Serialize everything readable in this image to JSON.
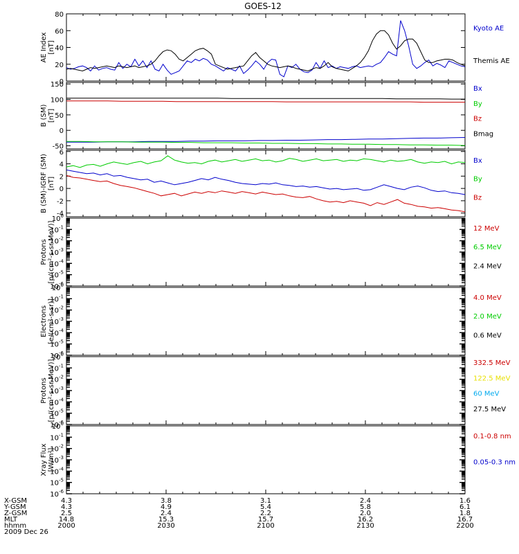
{
  "title": "GOES-12",
  "colors": {
    "black": "#000000",
    "blue": "#0000cc",
    "green": "#00cc00",
    "red": "#cc0000",
    "yellow": "#e8e000",
    "cyan": "#00aaee"
  },
  "chart_data": [
    {
      "id": "ae",
      "type": "line",
      "ylabel": [
        "AE Index",
        "[nT]"
      ],
      "ylim": [
        0,
        80
      ],
      "yticks": [
        0,
        20,
        40,
        60,
        80
      ],
      "scale": "linear",
      "series": [
        {
          "name": "Kyoto AE",
          "color": "#0000cc",
          "values": [
            16,
            14,
            15,
            17,
            18,
            16,
            12,
            18,
            13,
            15,
            16,
            14,
            13,
            22,
            15,
            20,
            17,
            26,
            18,
            24,
            16,
            24,
            14,
            12,
            20,
            13,
            8,
            10,
            12,
            18,
            24,
            22,
            26,
            24,
            27,
            25,
            20,
            18,
            15,
            12,
            16,
            14,
            12,
            18,
            9,
            13,
            18,
            24,
            20,
            14,
            22,
            26,
            25,
            8,
            5,
            18,
            16,
            20,
            14,
            11,
            10,
            13,
            22,
            15,
            24,
            16,
            18,
            15,
            17,
            16,
            15,
            17,
            18,
            16,
            17,
            18,
            17,
            20,
            22,
            28,
            35,
            32,
            30,
            72,
            60,
            42,
            20,
            15,
            18,
            22,
            25,
            18,
            21,
            19,
            16,
            24,
            22,
            20,
            18,
            17
          ]
        },
        {
          "name": "Themis AE",
          "color": "#000000",
          "values": [
            14,
            15,
            14,
            13,
            12,
            14,
            16,
            15,
            16,
            17,
            18,
            17,
            16,
            18,
            17,
            16,
            17,
            18,
            16,
            17,
            18,
            20,
            24,
            30,
            35,
            37,
            36,
            32,
            26,
            24,
            28,
            32,
            36,
            38,
            39,
            36,
            32,
            20,
            18,
            16,
            14,
            15,
            16,
            17,
            18,
            24,
            30,
            34,
            28,
            24,
            20,
            18,
            17,
            16,
            17,
            18,
            17,
            15,
            14,
            13,
            12,
            14,
            16,
            15,
            18,
            22,
            17,
            15,
            14,
            13,
            12,
            15,
            18,
            22,
            28,
            36,
            48,
            56,
            60,
            60,
            55,
            45,
            38,
            42,
            48,
            50,
            50,
            45,
            35,
            25,
            22,
            22,
            24,
            25,
            26,
            26,
            25,
            22,
            20,
            18
          ]
        }
      ]
    },
    {
      "id": "bfield",
      "type": "line",
      "ylabel": [
        "B (SM)",
        "[nT]"
      ],
      "ylim": [
        -60,
        155
      ],
      "yticks": [
        -50,
        0,
        50,
        100,
        150
      ],
      "scale": "linear",
      "series": [
        {
          "name": "Bx",
          "color": "#0000cc",
          "values": [
            -38,
            -38,
            -38,
            -37,
            -37,
            -37,
            -36,
            -36,
            -36,
            -35,
            -35,
            -34,
            -34,
            -34,
            -33,
            -33,
            -32,
            -32,
            -31,
            -30,
            -30,
            -29,
            -28,
            -28,
            -27,
            -26,
            -25,
            -25,
            -24,
            -23
          ]
        },
        {
          "name": "By",
          "color": "#00cc00",
          "values": [
            -36,
            -36,
            -37,
            -37,
            -37,
            -38,
            -38,
            -38,
            -39,
            -39,
            -40,
            -40,
            -40,
            -41,
            -41,
            -42,
            -42,
            -43,
            -43,
            -44,
            -44,
            -45,
            -45,
            -46,
            -46,
            -47,
            -47,
            -48,
            -48,
            -49
          ]
        },
        {
          "name": "Bz",
          "color": "#cc0000",
          "values": [
            95,
            95,
            95,
            95,
            94,
            94,
            94,
            94,
            93,
            93,
            93,
            93,
            93,
            93,
            93,
            93,
            92,
            92,
            92,
            92,
            92,
            92,
            92,
            92,
            92,
            92,
            91,
            91,
            91,
            91
          ]
        },
        {
          "name": "Bmag",
          "color": "#000000",
          "values": [
            104,
            104,
            104,
            104,
            104,
            104,
            104,
            104,
            104,
            104,
            104,
            104,
            103,
            103,
            103,
            103,
            103,
            103,
            103,
            103,
            103,
            103,
            103,
            103,
            102,
            102,
            102,
            102,
            101,
            101
          ]
        }
      ]
    },
    {
      "id": "bdiff",
      "type": "line",
      "ylabel": [
        "B (SM)-IGRF (SM)",
        "[nT]"
      ],
      "ylim": [
        -4.6,
        6.2
      ],
      "yticks": [
        -4,
        -2,
        0,
        2,
        4,
        6
      ],
      "scale": "linear",
      "series": [
        {
          "name": "Bx",
          "color": "#0000cc",
          "values": [
            3,
            2.8,
            2.6,
            2.4,
            2.5,
            2.2,
            2.4,
            2.0,
            2.1,
            1.8,
            1.6,
            1.4,
            1.5,
            1.0,
            1.2,
            0.9,
            0.6,
            0.8,
            1.0,
            1.3,
            1.6,
            1.4,
            1.8,
            1.5,
            1.3,
            1.0,
            0.8,
            0.7,
            0.6,
            0.8,
            0.7,
            0.9,
            0.6,
            0.5,
            0.3,
            0.4,
            0.2,
            0.3,
            0.1,
            -0.1,
            0.0,
            -0.2,
            -0.1,
            0.0,
            -0.3,
            -0.2,
            0.2,
            0.6,
            0.3,
            0.0,
            -0.2,
            0.2,
            0.4,
            0.1,
            -0.3,
            -0.5,
            -0.4,
            -0.7,
            -0.8,
            -1.0
          ]
        },
        {
          "name": "By",
          "color": "#00cc00",
          "values": [
            3.5,
            3.7,
            3.4,
            3.8,
            3.9,
            3.6,
            4.0,
            4.3,
            4.1,
            3.9,
            4.2,
            4.4,
            4.0,
            4.3,
            4.5,
            5.3,
            4.6,
            4.3,
            4.1,
            4.2,
            4.0,
            4.4,
            4.6,
            4.3,
            4.5,
            4.7,
            4.4,
            4.6,
            4.8,
            4.5,
            4.6,
            4.3,
            4.5,
            4.9,
            4.7,
            4.4,
            4.6,
            4.8,
            4.5,
            4.6,
            4.7,
            4.4,
            4.6,
            4.5,
            4.8,
            4.7,
            4.5,
            4.3,
            4.6,
            4.4,
            4.5,
            4.7,
            4.3,
            4.1,
            4.3,
            4.2,
            4.4,
            4.0,
            4.3,
            4.2
          ]
        },
        {
          "name": "Bz",
          "color": "#cc0000",
          "values": [
            2.1,
            1.8,
            1.7,
            1.5,
            1.3,
            1.1,
            1.2,
            0.8,
            0.5,
            0.3,
            0.1,
            -0.2,
            -0.5,
            -0.8,
            -1.2,
            -1.0,
            -0.8,
            -1.2,
            -0.9,
            -0.6,
            -0.8,
            -0.5,
            -0.7,
            -0.4,
            -0.6,
            -0.8,
            -0.5,
            -0.7,
            -0.9,
            -0.6,
            -0.8,
            -1.0,
            -0.9,
            -1.2,
            -1.4,
            -1.5,
            -1.3,
            -1.7,
            -2.0,
            -2.2,
            -2.1,
            -2.3,
            -2.0,
            -2.2,
            -2.4,
            -2.8,
            -2.3,
            -2.6,
            -2.2,
            -1.8,
            -2.4,
            -2.6,
            -2.9,
            -3.0,
            -3.2,
            -3.1,
            -3.3,
            -3.5,
            -3.6,
            -3.8
          ]
        }
      ]
    },
    {
      "id": "protons1",
      "type": "line",
      "scale": "log",
      "ylabel": [
        "Protons",
        "[p/(cm²-s-sr-MeV)]"
      ],
      "ylim_exp": [
        -6,
        0
      ],
      "ytick_exps": [
        0,
        -1,
        -2,
        -3,
        -4,
        -5,
        -6
      ],
      "series": [
        {
          "name": "12 MeV",
          "color": "#cc0000"
        },
        {
          "name": "6.5 MeV",
          "color": "#00cc00"
        },
        {
          "name": "2.4 MeV",
          "color": "#000000"
        }
      ]
    },
    {
      "id": "electrons",
      "type": "line",
      "scale": "log",
      "ylabel": [
        "Electrons",
        "[e/(cm²-s-sr)]"
      ],
      "ylim_exp": [
        -6,
        0
      ],
      "ytick_exps": [
        0,
        -1,
        -2,
        -3,
        -4,
        -5,
        -6
      ],
      "series": [
        {
          "name": "4.0 MeV",
          "color": "#cc0000"
        },
        {
          "name": "2.0 MeV",
          "color": "#00cc00"
        },
        {
          "name": "0.6 MeV",
          "color": "#000000"
        }
      ]
    },
    {
      "id": "protons2",
      "type": "line",
      "scale": "log",
      "ylabel": [
        "Protons",
        "[p/(cm²-s-sr-MeV)]"
      ],
      "ylim_exp": [
        -6,
        0
      ],
      "ytick_exps": [
        0,
        -1,
        -2,
        -3,
        -4,
        -5,
        -6
      ],
      "series": [
        {
          "name": "332.5 MeV",
          "color": "#cc0000"
        },
        {
          "name": "122.5 MeV",
          "color": "#e8e000"
        },
        {
          "name": "60 MeV",
          "color": "#00aaee"
        },
        {
          "name": "27.5 MeV",
          "color": "#000000"
        }
      ]
    },
    {
      "id": "xray",
      "type": "line",
      "scale": "log",
      "ylabel": [
        "Xray Flux",
        "[W/m²]"
      ],
      "ylim_exp": [
        -6,
        0
      ],
      "ytick_exps": [
        0,
        -1,
        -2,
        -3,
        -4,
        -5,
        -6
      ],
      "series": [
        {
          "name": "0.1-0.8 nm",
          "color": "#cc0000"
        },
        {
          "name": "0.05-0.3 nm",
          "color": "#0000cc"
        }
      ]
    }
  ],
  "xaxis": {
    "tick_count": 5,
    "rows": [
      {
        "label": "X-GSM",
        "values": [
          "4.3",
          "3.8",
          "3.1",
          "2.4",
          "1.6"
        ]
      },
      {
        "label": "Y-GSM",
        "values": [
          "4.3",
          "4.9",
          "5.4",
          "5.8",
          "6.1"
        ]
      },
      {
        "label": "Z-GSM",
        "values": [
          "2.5",
          "2.4",
          "2.2",
          "2.0",
          "1.8"
        ]
      },
      {
        "label": "MLT",
        "values": [
          "14.8",
          "15.3",
          "15.7",
          "16.2",
          "16.7"
        ]
      },
      {
        "label": "hhmm",
        "values": [
          "2000",
          "2030",
          "2100",
          "2130",
          "2200"
        ]
      }
    ],
    "date": "2009 Dec 26"
  }
}
